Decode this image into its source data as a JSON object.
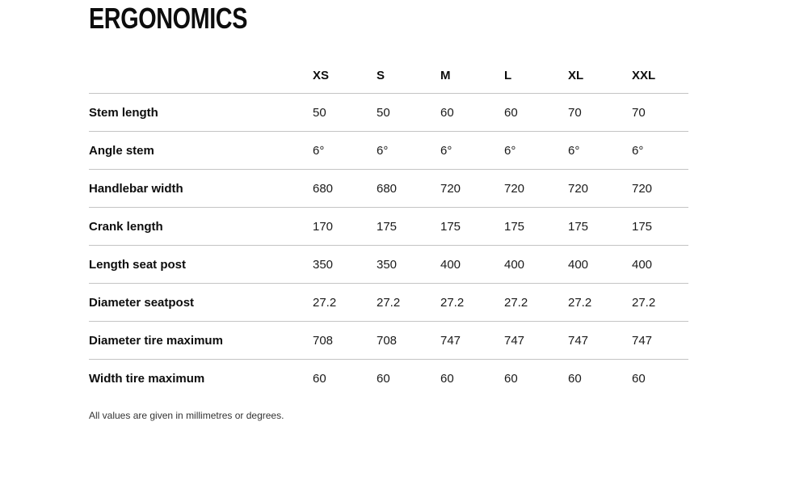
{
  "page": {
    "title": "ERGONOMICS",
    "footnote": "All values are given in millimetres or degrees."
  },
  "table": {
    "columns": [
      "XS",
      "S",
      "M",
      "L",
      "XL",
      "XXL"
    ],
    "rows": [
      {
        "label": "Stem length",
        "values": [
          "50",
          "50",
          "60",
          "60",
          "70",
          "70"
        ]
      },
      {
        "label": "Angle stem",
        "values": [
          "6°",
          "6°",
          "6°",
          "6°",
          "6°",
          "6°"
        ]
      },
      {
        "label": "Handlebar width",
        "values": [
          "680",
          "680",
          "720",
          "720",
          "720",
          "720"
        ]
      },
      {
        "label": "Crank length",
        "values": [
          "170",
          "175",
          "175",
          "175",
          "175",
          "175"
        ]
      },
      {
        "label": "Length seat post",
        "values": [
          "350",
          "350",
          "400",
          "400",
          "400",
          "400"
        ]
      },
      {
        "label": "Diameter seatpost",
        "values": [
          "27.2",
          "27.2",
          "27.2",
          "27.2",
          "27.2",
          "27.2"
        ]
      },
      {
        "label": "Diameter tire maximum",
        "values": [
          "708",
          "708",
          "747",
          "747",
          "747",
          "747"
        ]
      },
      {
        "label": "Width tire maximum",
        "values": [
          "60",
          "60",
          "60",
          "60",
          "60",
          "60"
        ]
      }
    ]
  },
  "colors": {
    "text": "#0d0d0d",
    "value_text": "#1a1a1a",
    "divider": "#c4c4c4",
    "footnote_text": "#333333",
    "background": "#ffffff"
  }
}
